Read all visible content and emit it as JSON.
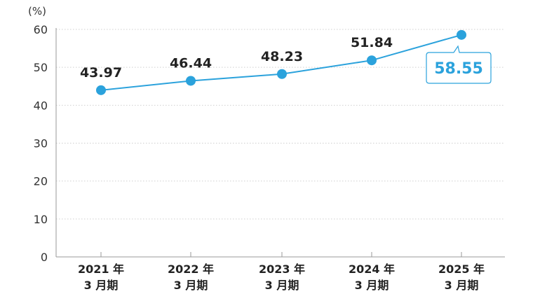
{
  "chart_data": {
    "type": "line",
    "unit_label": "(%)",
    "categories": [
      {
        "year": "2021 年",
        "period": "3 月期"
      },
      {
        "year": "2022 年",
        "period": "3 月期"
      },
      {
        "year": "2023 年",
        "period": "3 月期"
      },
      {
        "year": "2024 年",
        "period": "3 月期"
      },
      {
        "year": "2025 年",
        "period": "3 月期"
      }
    ],
    "values": [
      43.97,
      46.44,
      48.23,
      51.84,
      58.55
    ],
    "value_labels": [
      "43.97",
      "46.44",
      "48.23",
      "51.84",
      "58.55"
    ],
    "y_ticks": [
      "0",
      "10",
      "20",
      "30",
      "40",
      "50",
      "60"
    ],
    "ylim": [
      0,
      60
    ],
    "grid": "horizontal dotted",
    "highlight_last": true,
    "colors": {
      "line": "#2ba2dc",
      "marker": "#2ba2dc",
      "highlight_text": "#2ba2dc",
      "grid": "#cfcfcf",
      "axis": "#9a9a9a"
    }
  }
}
